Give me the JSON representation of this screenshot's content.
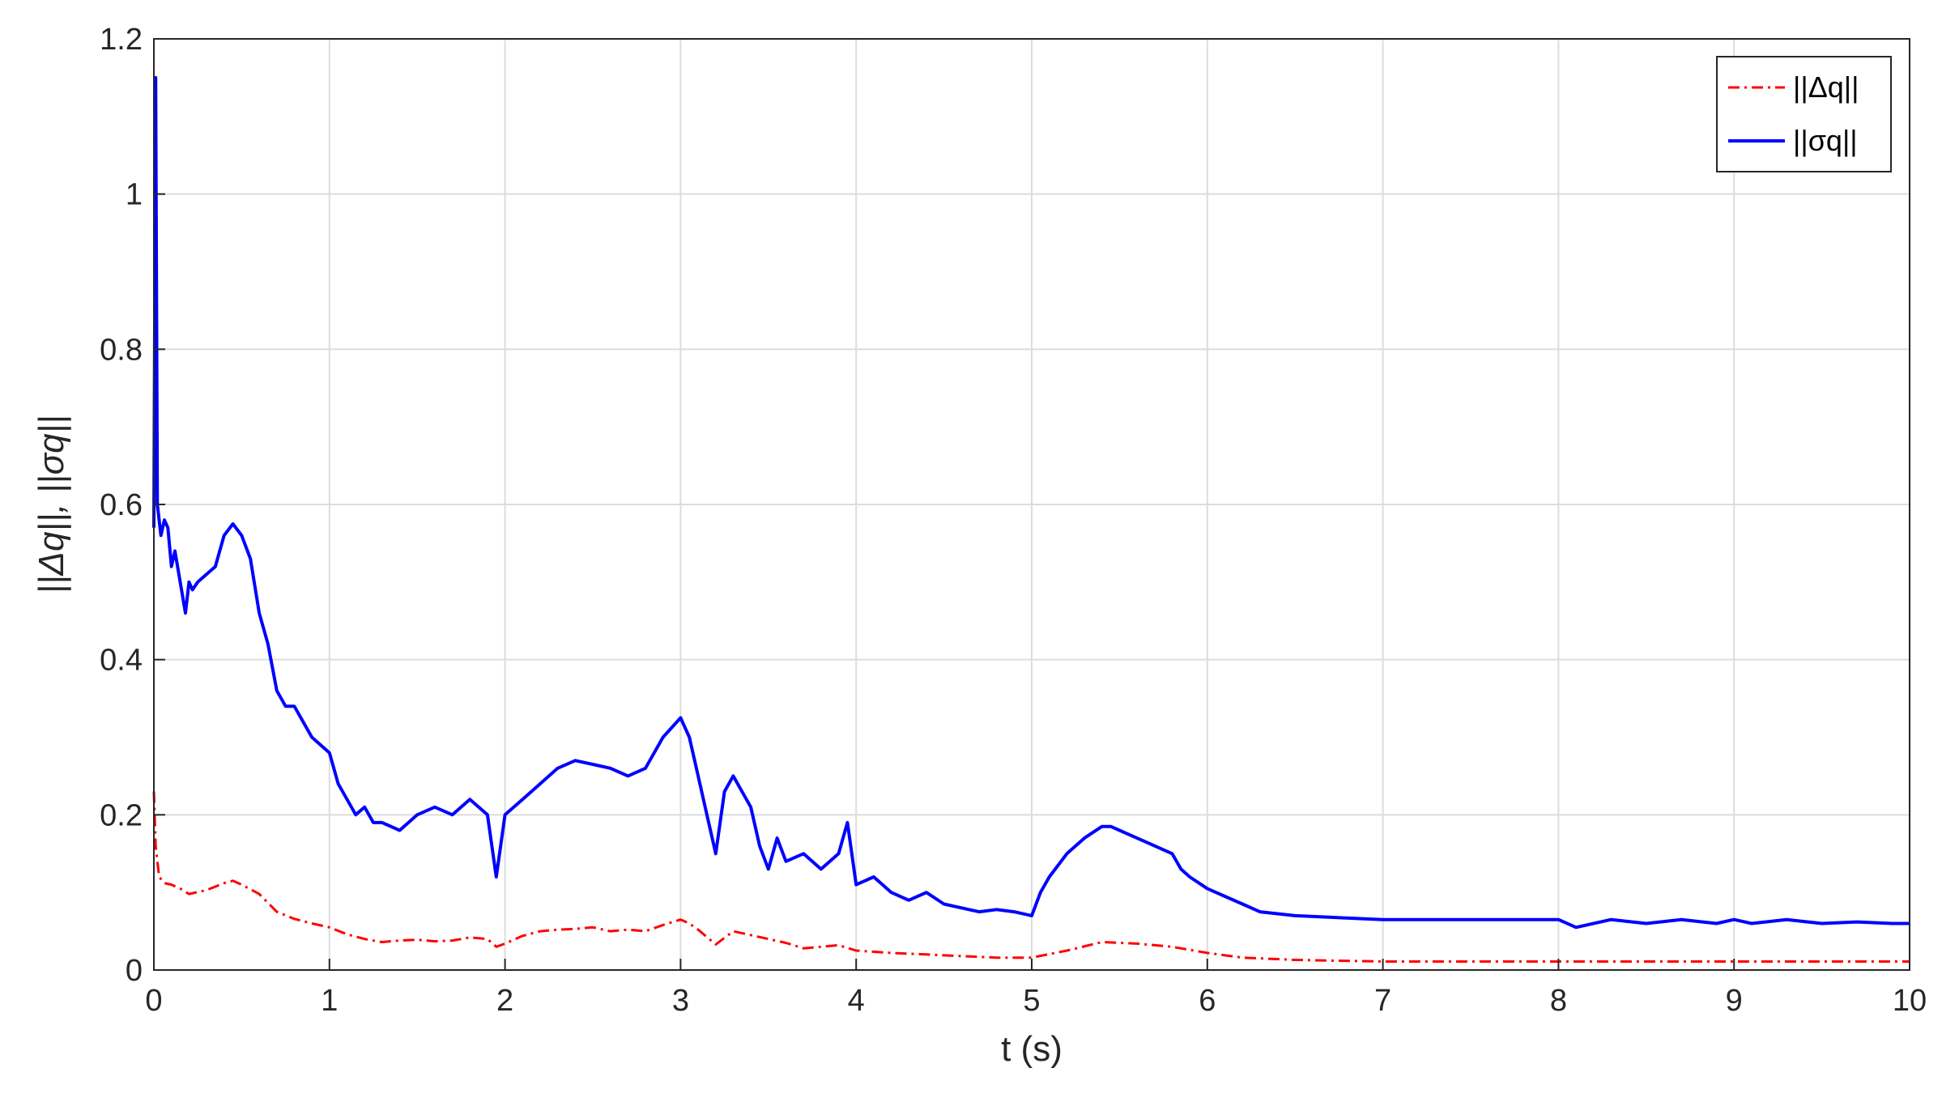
{
  "chart_data": {
    "type": "line",
    "xlabel": "t (s)",
    "ylabel": "||Δq||, ||σq||",
    "xlim": [
      0,
      10
    ],
    "ylim": [
      0,
      1.2
    ],
    "xticks": [
      "0",
      "1",
      "2",
      "3",
      "4",
      "5",
      "6",
      "7",
      "8",
      "9",
      "10"
    ],
    "yticks": [
      "0",
      "0.2",
      "0.4",
      "0.6",
      "0.8",
      "1",
      "1.2"
    ],
    "grid": true,
    "legend_position": "top-right",
    "legend": [
      {
        "label": "||Δq||",
        "color": "#ff0000",
        "style": "dash-dot"
      },
      {
        "label": "||σq||",
        "color": "#0000ff",
        "style": "solid"
      }
    ],
    "series": [
      {
        "name": "||Δq||",
        "color": "#ff0000",
        "style": "dash-dot",
        "x": [
          0,
          0.01,
          0.03,
          0.06,
          0.1,
          0.15,
          0.2,
          0.3,
          0.4,
          0.45,
          0.5,
          0.6,
          0.7,
          0.8,
          0.9,
          1.0,
          1.1,
          1.2,
          1.3,
          1.4,
          1.5,
          1.6,
          1.7,
          1.8,
          1.9,
          1.95,
          2.0,
          2.1,
          2.2,
          2.3,
          2.4,
          2.5,
          2.6,
          2.7,
          2.8,
          2.9,
          3.0,
          3.05,
          3.1,
          3.2,
          3.3,
          3.4,
          3.5,
          3.6,
          3.7,
          3.8,
          3.9,
          4.0,
          4.2,
          4.4,
          4.6,
          4.8,
          5.0,
          5.2,
          5.4,
          5.6,
          5.8,
          6.0,
          6.2,
          6.5,
          7.0,
          7.5,
          8.0,
          8.5,
          9.0,
          9.5,
          10.0
        ],
        "y": [
          0.23,
          0.16,
          0.12,
          0.112,
          0.11,
          0.105,
          0.098,
          0.103,
          0.112,
          0.115,
          0.11,
          0.098,
          0.075,
          0.066,
          0.06,
          0.055,
          0.046,
          0.04,
          0.036,
          0.038,
          0.039,
          0.037,
          0.038,
          0.042,
          0.04,
          0.03,
          0.034,
          0.044,
          0.05,
          0.052,
          0.053,
          0.055,
          0.05,
          0.052,
          0.05,
          0.058,
          0.065,
          0.06,
          0.052,
          0.033,
          0.05,
          0.045,
          0.04,
          0.035,
          0.028,
          0.03,
          0.032,
          0.025,
          0.022,
          0.02,
          0.018,
          0.016,
          0.016,
          0.025,
          0.036,
          0.034,
          0.03,
          0.022,
          0.016,
          0.013,
          0.011,
          0.011,
          0.011,
          0.011,
          0.011,
          0.011,
          0.011
        ]
      },
      {
        "name": "||σq||",
        "color": "#0000ff",
        "style": "solid",
        "x": [
          0,
          0.01,
          0.02,
          0.04,
          0.06,
          0.08,
          0.1,
          0.12,
          0.15,
          0.18,
          0.2,
          0.22,
          0.25,
          0.3,
          0.35,
          0.4,
          0.45,
          0.5,
          0.55,
          0.6,
          0.65,
          0.7,
          0.75,
          0.8,
          0.9,
          1.0,
          1.05,
          1.1,
          1.15,
          1.2,
          1.25,
          1.3,
          1.4,
          1.5,
          1.6,
          1.7,
          1.8,
          1.9,
          1.95,
          2.0,
          2.1,
          2.2,
          2.3,
          2.4,
          2.5,
          2.6,
          2.7,
          2.8,
          2.9,
          3.0,
          3.05,
          3.1,
          3.15,
          3.2,
          3.25,
          3.3,
          3.4,
          3.45,
          3.5,
          3.55,
          3.6,
          3.7,
          3.8,
          3.9,
          3.95,
          4.0,
          4.1,
          4.2,
          4.3,
          4.4,
          4.5,
          4.6,
          4.7,
          4.8,
          4.9,
          5.0,
          5.05,
          5.1,
          5.2,
          5.3,
          5.4,
          5.45,
          5.5,
          5.6,
          5.7,
          5.8,
          5.85,
          5.9,
          6.0,
          6.1,
          6.2,
          6.3,
          6.5,
          7.0,
          7.5,
          8.0,
          8.1,
          8.3,
          8.5,
          8.7,
          8.9,
          9.0,
          9.1,
          9.3,
          9.5,
          9.7,
          9.9,
          10.0
        ],
        "y": [
          0.57,
          1.15,
          0.6,
          0.56,
          0.58,
          0.57,
          0.52,
          0.54,
          0.5,
          0.46,
          0.5,
          0.49,
          0.5,
          0.51,
          0.52,
          0.56,
          0.575,
          0.56,
          0.53,
          0.46,
          0.42,
          0.36,
          0.34,
          0.34,
          0.3,
          0.28,
          0.24,
          0.22,
          0.2,
          0.21,
          0.19,
          0.19,
          0.18,
          0.2,
          0.21,
          0.2,
          0.22,
          0.2,
          0.12,
          0.2,
          0.22,
          0.24,
          0.26,
          0.27,
          0.265,
          0.26,
          0.25,
          0.26,
          0.3,
          0.325,
          0.3,
          0.25,
          0.2,
          0.15,
          0.23,
          0.25,
          0.21,
          0.16,
          0.13,
          0.17,
          0.14,
          0.15,
          0.13,
          0.15,
          0.19,
          0.11,
          0.12,
          0.1,
          0.09,
          0.1,
          0.085,
          0.08,
          0.075,
          0.078,
          0.075,
          0.07,
          0.1,
          0.12,
          0.15,
          0.17,
          0.185,
          0.185,
          0.18,
          0.17,
          0.16,
          0.15,
          0.13,
          0.12,
          0.105,
          0.095,
          0.085,
          0.075,
          0.07,
          0.065,
          0.065,
          0.065,
          0.055,
          0.065,
          0.06,
          0.065,
          0.06,
          0.065,
          0.06,
          0.065,
          0.06,
          0.062,
          0.06,
          0.06
        ]
      }
    ]
  }
}
